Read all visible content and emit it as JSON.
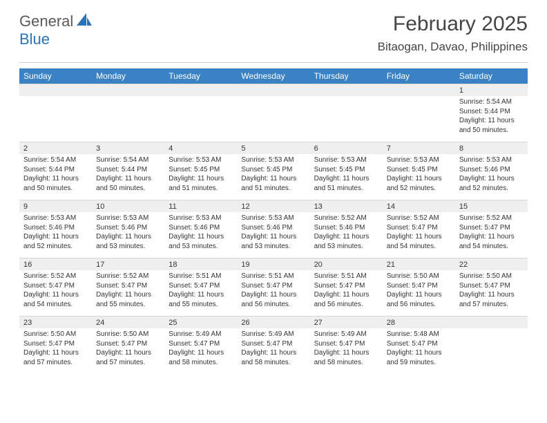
{
  "brand": {
    "part1": "General",
    "part2": "Blue"
  },
  "title": "February 2025",
  "location": "Bitaogan, Davao, Philippines",
  "colors": {
    "header_bg": "#3b82c4",
    "brand_blue": "#2a74b8",
    "numrow_bg": "#efefef",
    "border": "#d8d8d8",
    "text": "#333333"
  },
  "typography": {
    "title_size": 30,
    "location_size": 17,
    "dayhead_size": 12,
    "num_size": 11,
    "cell_size": 10
  },
  "dayNames": [
    "Sunday",
    "Monday",
    "Tuesday",
    "Wednesday",
    "Thursday",
    "Friday",
    "Saturday"
  ],
  "weeks": [
    [
      {
        "n": "",
        "sunrise": "",
        "sunset": "",
        "daylight": ""
      },
      {
        "n": "",
        "sunrise": "",
        "sunset": "",
        "daylight": ""
      },
      {
        "n": "",
        "sunrise": "",
        "sunset": "",
        "daylight": ""
      },
      {
        "n": "",
        "sunrise": "",
        "sunset": "",
        "daylight": ""
      },
      {
        "n": "",
        "sunrise": "",
        "sunset": "",
        "daylight": ""
      },
      {
        "n": "",
        "sunrise": "",
        "sunset": "",
        "daylight": ""
      },
      {
        "n": "1",
        "sunrise": "Sunrise: 5:54 AM",
        "sunset": "Sunset: 5:44 PM",
        "daylight": "Daylight: 11 hours and 50 minutes."
      }
    ],
    [
      {
        "n": "2",
        "sunrise": "Sunrise: 5:54 AM",
        "sunset": "Sunset: 5:44 PM",
        "daylight": "Daylight: 11 hours and 50 minutes."
      },
      {
        "n": "3",
        "sunrise": "Sunrise: 5:54 AM",
        "sunset": "Sunset: 5:44 PM",
        "daylight": "Daylight: 11 hours and 50 minutes."
      },
      {
        "n": "4",
        "sunrise": "Sunrise: 5:53 AM",
        "sunset": "Sunset: 5:45 PM",
        "daylight": "Daylight: 11 hours and 51 minutes."
      },
      {
        "n": "5",
        "sunrise": "Sunrise: 5:53 AM",
        "sunset": "Sunset: 5:45 PM",
        "daylight": "Daylight: 11 hours and 51 minutes."
      },
      {
        "n": "6",
        "sunrise": "Sunrise: 5:53 AM",
        "sunset": "Sunset: 5:45 PM",
        "daylight": "Daylight: 11 hours and 51 minutes."
      },
      {
        "n": "7",
        "sunrise": "Sunrise: 5:53 AM",
        "sunset": "Sunset: 5:45 PM",
        "daylight": "Daylight: 11 hours and 52 minutes."
      },
      {
        "n": "8",
        "sunrise": "Sunrise: 5:53 AM",
        "sunset": "Sunset: 5:46 PM",
        "daylight": "Daylight: 11 hours and 52 minutes."
      }
    ],
    [
      {
        "n": "9",
        "sunrise": "Sunrise: 5:53 AM",
        "sunset": "Sunset: 5:46 PM",
        "daylight": "Daylight: 11 hours and 52 minutes."
      },
      {
        "n": "10",
        "sunrise": "Sunrise: 5:53 AM",
        "sunset": "Sunset: 5:46 PM",
        "daylight": "Daylight: 11 hours and 53 minutes."
      },
      {
        "n": "11",
        "sunrise": "Sunrise: 5:53 AM",
        "sunset": "Sunset: 5:46 PM",
        "daylight": "Daylight: 11 hours and 53 minutes."
      },
      {
        "n": "12",
        "sunrise": "Sunrise: 5:53 AM",
        "sunset": "Sunset: 5:46 PM",
        "daylight": "Daylight: 11 hours and 53 minutes."
      },
      {
        "n": "13",
        "sunrise": "Sunrise: 5:52 AM",
        "sunset": "Sunset: 5:46 PM",
        "daylight": "Daylight: 11 hours and 53 minutes."
      },
      {
        "n": "14",
        "sunrise": "Sunrise: 5:52 AM",
        "sunset": "Sunset: 5:47 PM",
        "daylight": "Daylight: 11 hours and 54 minutes."
      },
      {
        "n": "15",
        "sunrise": "Sunrise: 5:52 AM",
        "sunset": "Sunset: 5:47 PM",
        "daylight": "Daylight: 11 hours and 54 minutes."
      }
    ],
    [
      {
        "n": "16",
        "sunrise": "Sunrise: 5:52 AM",
        "sunset": "Sunset: 5:47 PM",
        "daylight": "Daylight: 11 hours and 54 minutes."
      },
      {
        "n": "17",
        "sunrise": "Sunrise: 5:52 AM",
        "sunset": "Sunset: 5:47 PM",
        "daylight": "Daylight: 11 hours and 55 minutes."
      },
      {
        "n": "18",
        "sunrise": "Sunrise: 5:51 AM",
        "sunset": "Sunset: 5:47 PM",
        "daylight": "Daylight: 11 hours and 55 minutes."
      },
      {
        "n": "19",
        "sunrise": "Sunrise: 5:51 AM",
        "sunset": "Sunset: 5:47 PM",
        "daylight": "Daylight: 11 hours and 56 minutes."
      },
      {
        "n": "20",
        "sunrise": "Sunrise: 5:51 AM",
        "sunset": "Sunset: 5:47 PM",
        "daylight": "Daylight: 11 hours and 56 minutes."
      },
      {
        "n": "21",
        "sunrise": "Sunrise: 5:50 AM",
        "sunset": "Sunset: 5:47 PM",
        "daylight": "Daylight: 11 hours and 56 minutes."
      },
      {
        "n": "22",
        "sunrise": "Sunrise: 5:50 AM",
        "sunset": "Sunset: 5:47 PM",
        "daylight": "Daylight: 11 hours and 57 minutes."
      }
    ],
    [
      {
        "n": "23",
        "sunrise": "Sunrise: 5:50 AM",
        "sunset": "Sunset: 5:47 PM",
        "daylight": "Daylight: 11 hours and 57 minutes."
      },
      {
        "n": "24",
        "sunrise": "Sunrise: 5:50 AM",
        "sunset": "Sunset: 5:47 PM",
        "daylight": "Daylight: 11 hours and 57 minutes."
      },
      {
        "n": "25",
        "sunrise": "Sunrise: 5:49 AM",
        "sunset": "Sunset: 5:47 PM",
        "daylight": "Daylight: 11 hours and 58 minutes."
      },
      {
        "n": "26",
        "sunrise": "Sunrise: 5:49 AM",
        "sunset": "Sunset: 5:47 PM",
        "daylight": "Daylight: 11 hours and 58 minutes."
      },
      {
        "n": "27",
        "sunrise": "Sunrise: 5:49 AM",
        "sunset": "Sunset: 5:47 PM",
        "daylight": "Daylight: 11 hours and 58 minutes."
      },
      {
        "n": "28",
        "sunrise": "Sunrise: 5:48 AM",
        "sunset": "Sunset: 5:47 PM",
        "daylight": "Daylight: 11 hours and 59 minutes."
      },
      {
        "n": "",
        "sunrise": "",
        "sunset": "",
        "daylight": ""
      }
    ]
  ]
}
